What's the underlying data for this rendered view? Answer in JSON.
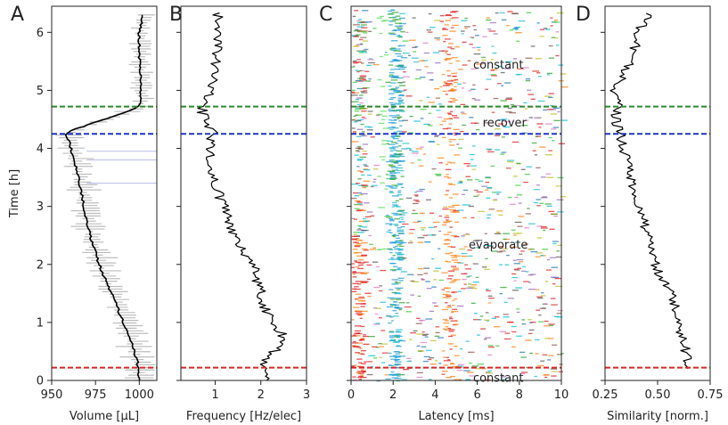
{
  "figure": {
    "ylabel": "Time [h]",
    "y_ticks": [
      0,
      1,
      2,
      3,
      4,
      5,
      6
    ],
    "y_range": [
      0,
      6.45
    ],
    "markers": [
      {
        "name": "start",
        "time": 0.22,
        "color": "#d62728"
      },
      {
        "name": "evaporate-end",
        "time": 4.25,
        "color": "#1f35c9"
      },
      {
        "name": "recover-end",
        "time": 4.72,
        "color": "#2c8a2c"
      }
    ]
  },
  "chart_data": [
    {
      "panel": "A",
      "type": "line",
      "xlabel": "Volume [μL]",
      "xlim": [
        950,
        1010
      ],
      "x_ticks": [
        950,
        975,
        1000
      ],
      "x_tick_labels": [
        "950",
        "975",
        "1000"
      ],
      "series": [
        {
          "name": "volume",
          "color": "#000000",
          "points": [
            {
              "time": 0.0,
              "value": 1000
            },
            {
              "time": 0.3,
              "value": 999
            },
            {
              "time": 0.6,
              "value": 996
            },
            {
              "time": 1.0,
              "value": 991
            },
            {
              "time": 1.5,
              "value": 984
            },
            {
              "time": 2.0,
              "value": 977
            },
            {
              "time": 2.5,
              "value": 972
            },
            {
              "time": 2.9,
              "value": 969
            },
            {
              "time": 3.4,
              "value": 966
            },
            {
              "time": 3.8,
              "value": 963
            },
            {
              "time": 4.0,
              "value": 961
            },
            {
              "time": 4.2,
              "value": 959
            },
            {
              "time": 4.25,
              "value": 958
            },
            {
              "time": 4.3,
              "value": 960
            },
            {
              "time": 4.45,
              "value": 975
            },
            {
              "time": 4.6,
              "value": 990
            },
            {
              "time": 4.72,
              "value": 1000
            },
            {
              "time": 5.0,
              "value": 1001
            },
            {
              "time": 5.5,
              "value": 1000
            },
            {
              "time": 6.0,
              "value": 1000
            },
            {
              "time": 6.3,
              "value": 1002
            }
          ]
        }
      ]
    },
    {
      "panel": "B",
      "type": "line",
      "xlabel": "Frequency [Hz/elec]",
      "xlim": [
        0.25,
        3.0
      ],
      "x_ticks": [
        1,
        2,
        3
      ],
      "x_tick_labels": [
        "1",
        "2",
        "3"
      ],
      "series": [
        {
          "name": "frequency",
          "color": "#000000",
          "points": [
            {
              "time": 0.0,
              "value": 2.15
            },
            {
              "time": 0.25,
              "value": 2.0
            },
            {
              "time": 0.5,
              "value": 2.3
            },
            {
              "time": 0.75,
              "value": 2.5
            },
            {
              "time": 1.0,
              "value": 2.3
            },
            {
              "time": 1.25,
              "value": 2.1
            },
            {
              "time": 1.5,
              "value": 2.0
            },
            {
              "time": 1.75,
              "value": 1.9
            },
            {
              "time": 2.0,
              "value": 1.85
            },
            {
              "time": 2.25,
              "value": 1.6
            },
            {
              "time": 2.5,
              "value": 1.4
            },
            {
              "time": 2.75,
              "value": 1.3
            },
            {
              "time": 3.0,
              "value": 1.2
            },
            {
              "time": 3.25,
              "value": 1.05
            },
            {
              "time": 3.5,
              "value": 0.95
            },
            {
              "time": 3.75,
              "value": 0.85
            },
            {
              "time": 4.0,
              "value": 0.9
            },
            {
              "time": 4.25,
              "value": 0.95
            },
            {
              "time": 4.5,
              "value": 0.75
            },
            {
              "time": 4.75,
              "value": 0.7
            },
            {
              "time": 5.0,
              "value": 0.9
            },
            {
              "time": 5.5,
              "value": 1.0
            },
            {
              "time": 6.0,
              "value": 1.1
            },
            {
              "time": 6.35,
              "value": 1.05
            }
          ]
        }
      ]
    },
    {
      "panel": "C",
      "type": "raster",
      "xlabel": "Latency [ms]",
      "xlim": [
        0,
        10
      ],
      "x_ticks": [
        0,
        2,
        4,
        6,
        8,
        10
      ],
      "x_tick_labels": [
        "0",
        "2",
        "4",
        "6",
        "8",
        "10"
      ],
      "annotations": [
        {
          "text": "constant",
          "time": 5.45,
          "latency": 7.0,
          "color": "#2e8b2e"
        },
        {
          "text": "recover",
          "time": 4.45,
          "latency": 7.3,
          "color": "#3b3b8f"
        },
        {
          "text": "evaporate",
          "time": 2.35,
          "latency": 7.0,
          "color": "#d62728"
        },
        {
          "text": "constant",
          "time": 0.05,
          "latency": 7.0,
          "color": "#2e8b2e"
        }
      ]
    },
    {
      "panel": "D",
      "type": "line",
      "xlabel": "Similarity [norm.]",
      "xlim": [
        0.25,
        0.75
      ],
      "x_ticks": [
        0.25,
        0.5,
        0.75
      ],
      "x_tick_labels": [
        "0.25",
        "0.50",
        "0.75"
      ],
      "series": [
        {
          "name": "similarity",
          "color": "#000000",
          "points": [
            {
              "time": 0.2,
              "value": 0.63
            },
            {
              "time": 0.4,
              "value": 0.64
            },
            {
              "time": 0.7,
              "value": 0.62
            },
            {
              "time": 1.0,
              "value": 0.6
            },
            {
              "time": 1.3,
              "value": 0.58
            },
            {
              "time": 1.6,
              "value": 0.55
            },
            {
              "time": 1.9,
              "value": 0.5
            },
            {
              "time": 2.2,
              "value": 0.47
            },
            {
              "time": 2.5,
              "value": 0.45
            },
            {
              "time": 2.8,
              "value": 0.43
            },
            {
              "time": 3.1,
              "value": 0.4
            },
            {
              "time": 3.4,
              "value": 0.38
            },
            {
              "time": 3.7,
              "value": 0.36
            },
            {
              "time": 4.0,
              "value": 0.34
            },
            {
              "time": 4.25,
              "value": 0.32
            },
            {
              "time": 4.5,
              "value": 0.3
            },
            {
              "time": 4.75,
              "value": 0.31
            },
            {
              "time": 5.0,
              "value": 0.3
            },
            {
              "time": 5.25,
              "value": 0.34
            },
            {
              "time": 5.5,
              "value": 0.37
            },
            {
              "time": 5.8,
              "value": 0.4
            },
            {
              "time": 6.1,
              "value": 0.42
            },
            {
              "time": 6.35,
              "value": 0.46
            }
          ]
        }
      ]
    }
  ]
}
